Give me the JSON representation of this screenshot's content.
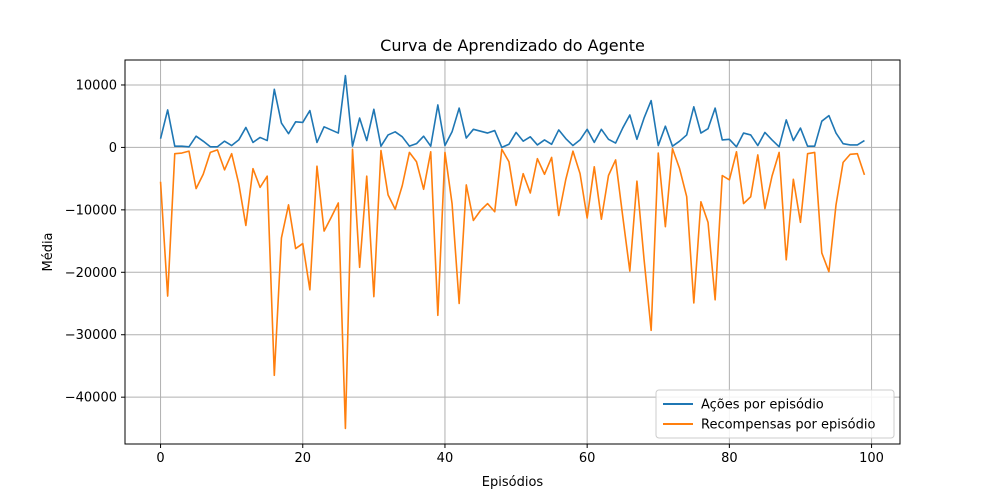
{
  "chart_data": {
    "type": "line",
    "title": "Curva de Aprendizado do Agente",
    "xlabel": "Episódios",
    "ylabel": "Média",
    "xlim": [
      -5,
      104
    ],
    "ylim": [
      -47500,
      14000
    ],
    "xticks": [
      0,
      20,
      40,
      60,
      80,
      100
    ],
    "yticks": [
      10000,
      0,
      -10000,
      -20000,
      -30000,
      -40000
    ],
    "xtick_labels": [
      "0",
      "20",
      "40",
      "60",
      "80",
      "100"
    ],
    "ytick_labels": [
      "10000",
      "0",
      "−10000",
      "−20000",
      "−30000",
      "−40000"
    ],
    "grid": true,
    "legend_position": "lower-right",
    "series": [
      {
        "name": "Ações por episódio",
        "color": "#1f77b4",
        "x": [
          0,
          1,
          2,
          3,
          4,
          5,
          6,
          7,
          8,
          9,
          10,
          11,
          12,
          13,
          14,
          15,
          16,
          17,
          18,
          19,
          20,
          21,
          22,
          23,
          24,
          25,
          26,
          27,
          28,
          29,
          30,
          31,
          32,
          33,
          34,
          35,
          36,
          37,
          38,
          39,
          40,
          41,
          42,
          43,
          44,
          45,
          46,
          47,
          48,
          49,
          50,
          51,
          52,
          53,
          54,
          55,
          56,
          57,
          58,
          59,
          60,
          61,
          62,
          63,
          64,
          65,
          66,
          67,
          68,
          69,
          70,
          71,
          72,
          73,
          74,
          75,
          76,
          77,
          78,
          79,
          80,
          81,
          82,
          83,
          84,
          85,
          86,
          87,
          88,
          89,
          90,
          91,
          92,
          93,
          94,
          95,
          96,
          97,
          98,
          99
        ],
        "values": [
          1400,
          6000,
          200,
          200,
          100,
          1800,
          1000,
          100,
          100,
          1000,
          300,
          1200,
          3200,
          800,
          1600,
          1100,
          9300,
          3900,
          2200,
          4100,
          4000,
          5900,
          800,
          3300,
          2800,
          2300,
          11500,
          200,
          4700,
          1100,
          6100,
          200,
          2000,
          2500,
          1700,
          200,
          600,
          1800,
          200,
          6800,
          300,
          2500,
          6300,
          1500,
          2900,
          2600,
          2300,
          2700,
          0,
          500,
          2400,
          1000,
          1700,
          400,
          1200,
          500,
          2800,
          1400,
          300,
          1200,
          2900,
          800,
          2900,
          1300,
          700,
          3100,
          5200,
          1300,
          4700,
          7500,
          300,
          3400,
          200,
          1000,
          2000,
          6500,
          2300,
          3000,
          6300,
          1200,
          1300,
          100,
          2300,
          2000,
          300,
          2400,
          1200,
          100,
          4400,
          1100,
          3100,
          200,
          200,
          4200,
          5100,
          2300,
          600,
          400,
          400,
          1100
        ]
      },
      {
        "name": "Recompensas por episódio",
        "color": "#ff7f0e",
        "x": [
          0,
          1,
          2,
          3,
          4,
          5,
          6,
          7,
          8,
          9,
          10,
          11,
          12,
          13,
          14,
          15,
          16,
          17,
          18,
          19,
          20,
          21,
          22,
          23,
          24,
          25,
          26,
          27,
          28,
          29,
          30,
          31,
          32,
          33,
          34,
          35,
          36,
          37,
          38,
          39,
          40,
          41,
          42,
          43,
          44,
          45,
          46,
          47,
          48,
          49,
          50,
          51,
          52,
          53,
          54,
          55,
          56,
          57,
          58,
          59,
          60,
          61,
          62,
          63,
          64,
          65,
          66,
          67,
          68,
          69,
          70,
          71,
          72,
          73,
          74,
          75,
          76,
          77,
          78,
          79,
          80,
          81,
          82,
          83,
          84,
          85,
          86,
          87,
          88,
          89,
          90,
          91,
          92,
          93,
          94,
          95,
          96,
          97,
          98,
          99
        ],
        "values": [
          -5500,
          -23800,
          -1000,
          -900,
          -600,
          -6600,
          -4300,
          -800,
          -400,
          -3600,
          -1000,
          -5800,
          -12500,
          -3400,
          -6400,
          -4600,
          -36500,
          -14500,
          -9200,
          -16200,
          -15400,
          -22800,
          -3000,
          -13400,
          -11200,
          -8900,
          -45000,
          -300,
          -19200,
          -4600,
          -23900,
          -500,
          -7600,
          -9900,
          -6100,
          -800,
          -2300,
          -6700,
          -700,
          -26900,
          -800,
          -9000,
          -25000,
          -6000,
          -11700,
          -10100,
          -9000,
          -10300,
          -300,
          -2300,
          -9300,
          -4200,
          -7300,
          -1800,
          -4300,
          -1600,
          -10900,
          -5100,
          -600,
          -4200,
          -11300,
          -3100,
          -11500,
          -4500,
          -2000,
          -11000,
          -19800,
          -5400,
          -17900,
          -29300,
          -900,
          -12700,
          -200,
          -3400,
          -7900,
          -24900,
          -8700,
          -12000,
          -24400,
          -4500,
          -5200,
          -700,
          -9000,
          -7900,
          -1200,
          -9800,
          -4600,
          -800,
          -18000,
          -5100,
          -12000,
          -1000,
          -800,
          -16900,
          -19900,
          -9200,
          -2400,
          -1100,
          -1000,
          -4400
        ]
      }
    ]
  }
}
